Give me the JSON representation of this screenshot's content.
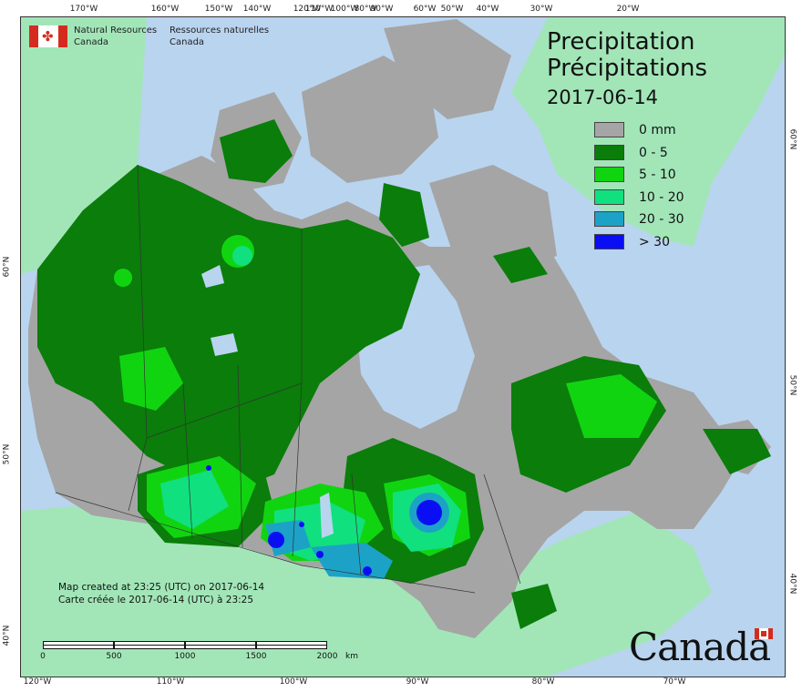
{
  "agency": {
    "name_en_line1": "Natural Resources",
    "name_en_line2": "Canada",
    "name_fr_line1": "Ressources naturelles",
    "name_fr_line2": "Canada"
  },
  "title": {
    "en": "Precipitation",
    "fr": "Précipitations",
    "date": "2017-06-14"
  },
  "legend": [
    {
      "label": "0 mm",
      "color": "#a5a5a5"
    },
    {
      "label": "0 - 5",
      "color": "#0a7d0a"
    },
    {
      "label": "5 - 10",
      "color": "#11d411"
    },
    {
      "label": "10 - 20",
      "color": "#10e07e"
    },
    {
      "label": "20 - 30",
      "color": "#1ca2c6"
    },
    {
      "label": "> 30",
      "color": "#0a0ef5"
    }
  ],
  "credit": {
    "en": "Map created at 23:25 (UTC) on 2017-06-14",
    "fr": "Carte créée le 2017-06-14 (UTC) à 23:25"
  },
  "scale": {
    "labels": [
      "0",
      "500",
      "1000",
      "1500",
      "2000"
    ],
    "unit": "km"
  },
  "graticule": {
    "top": [
      "170°W",
      "160°W",
      "150°W",
      "140°W",
      "120°W",
      "110°W",
      "100°W",
      "90°W",
      "80°W",
      "60°W",
      "50°W",
      "40°W",
      "30°W",
      "20°W"
    ],
    "bottom": [
      "120°W",
      "110°W",
      "100°W",
      "90°W",
      "80°W",
      "70°W"
    ],
    "left": [
      "60°N",
      "50°N",
      "40°N"
    ],
    "right": [
      "60°N",
      "50°N",
      "40°N"
    ]
  },
  "wordmark": "Canada",
  "colors": {
    "ocean": "#b9d4ef",
    "foreign_land": "#a2e6b8",
    "no_precip": "#a5a5a5",
    "boundary": "#333333"
  }
}
